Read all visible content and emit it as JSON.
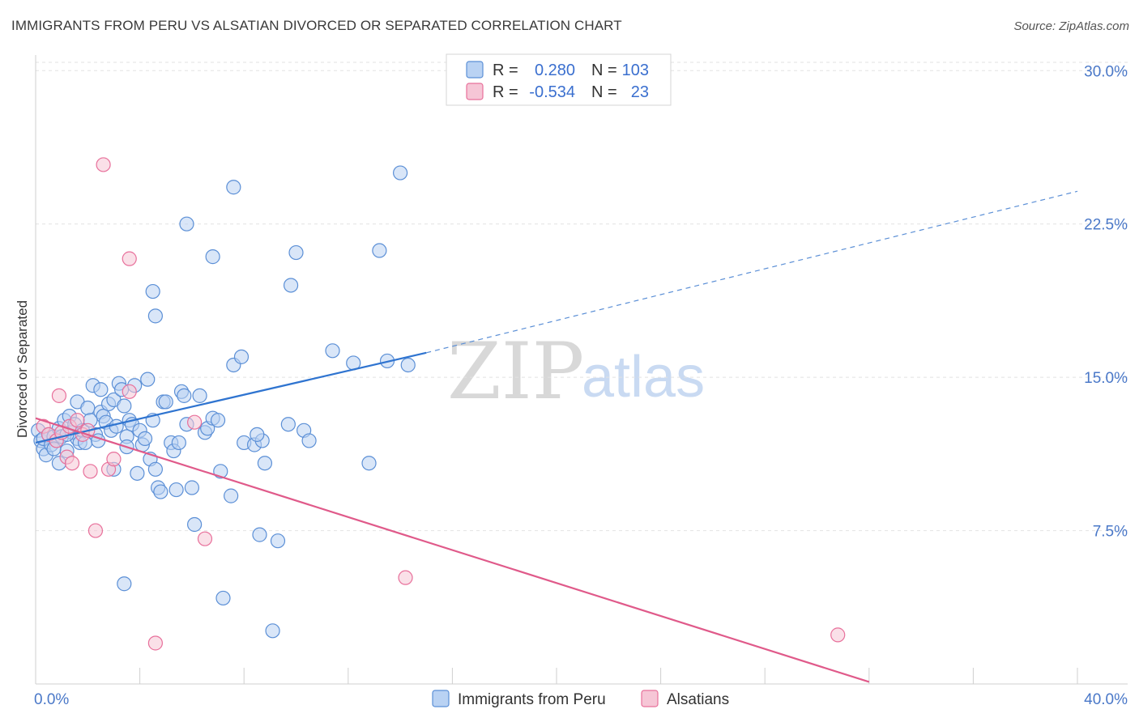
{
  "title": "IMMIGRANTS FROM PERU VS ALSATIAN DIVORCED OR SEPARATED CORRELATION CHART",
  "source": "Source: ZipAtlas.com",
  "watermark": {
    "zip": "ZIP",
    "atlas": "atlas"
  },
  "colors": {
    "peru": "#5b8fd6",
    "peru_fill": "#b9d2f3",
    "alsatian": "#e8709b",
    "alsatian_fill": "#f6c6d6",
    "axis_label": "#4a78c8",
    "grid": "#e2e2e2"
  },
  "legend": {
    "rows": [
      {
        "r_label": "R =",
        "r_value": "0.280",
        "n_label": "N =",
        "n_value": "103"
      },
      {
        "r_label": "R =",
        "r_value": "-0.534",
        "n_label": "N =",
        "n_value": "23"
      }
    ]
  },
  "bottom_legend": [
    "Immigrants from Peru",
    "Alsatians"
  ],
  "chart_data": {
    "type": "scatter",
    "title": "IMMIGRANTS FROM PERU VS ALSATIAN DIVORCED OR SEPARATED CORRELATION CHART",
    "xlabel": "",
    "ylabel": "Divorced or Separated",
    "xlim": [
      0,
      40
    ],
    "ylim": [
      0,
      31
    ],
    "x_tick_labels": [
      "0.0%",
      "40.0%"
    ],
    "y_ticks": [
      7.5,
      15.0,
      22.5,
      30.0
    ],
    "y_tick_labels": [
      "7.5%",
      "15.0%",
      "22.5%",
      "30.0%"
    ],
    "grid": true,
    "legend_position": "top-center",
    "series": [
      {
        "name": "Immigrants from Peru",
        "r": 0.28,
        "n": 103,
        "trend": {
          "x0": 0,
          "y0": 11.8,
          "x1": 15,
          "y1": 16.2,
          "dashed_to_x": 40,
          "dashed_to_y": 24.1
        },
        "points": [
          [
            0.1,
            12.4
          ],
          [
            0.2,
            11.9
          ],
          [
            0.3,
            11.5
          ],
          [
            0.3,
            12.0
          ],
          [
            0.4,
            11.2
          ],
          [
            0.5,
            12.2
          ],
          [
            0.6,
            11.7
          ],
          [
            0.7,
            12.1
          ],
          [
            0.8,
            11.9
          ],
          [
            0.9,
            10.8
          ],
          [
            0.9,
            12.5
          ],
          [
            1.0,
            12.1
          ],
          [
            1.1,
            12.9
          ],
          [
            1.2,
            11.4
          ],
          [
            1.3,
            13.1
          ],
          [
            1.4,
            12.3
          ],
          [
            1.5,
            12.7
          ],
          [
            1.6,
            12.0
          ],
          [
            1.7,
            11.8
          ],
          [
            1.8,
            12.4
          ],
          [
            1.6,
            13.8
          ],
          [
            1.9,
            11.8
          ],
          [
            2.0,
            13.5
          ],
          [
            2.1,
            12.9
          ],
          [
            2.2,
            14.6
          ],
          [
            2.3,
            12.2
          ],
          [
            2.4,
            11.9
          ],
          [
            2.5,
            13.3
          ],
          [
            2.6,
            13.1
          ],
          [
            2.7,
            12.8
          ],
          [
            2.8,
            13.7
          ],
          [
            2.9,
            12.4
          ],
          [
            2.5,
            14.4
          ],
          [
            3.0,
            10.5
          ],
          [
            3.0,
            13.9
          ],
          [
            3.1,
            12.6
          ],
          [
            3.2,
            14.7
          ],
          [
            3.3,
            14.4
          ],
          [
            3.4,
            13.6
          ],
          [
            3.5,
            12.1
          ],
          [
            3.5,
            11.6
          ],
          [
            3.6,
            12.9
          ],
          [
            3.7,
            12.7
          ],
          [
            3.8,
            14.6
          ],
          [
            3.9,
            10.3
          ],
          [
            4.0,
            12.4
          ],
          [
            4.1,
            11.7
          ],
          [
            4.2,
            12.0
          ],
          [
            4.3,
            14.9
          ],
          [
            4.4,
            11.0
          ],
          [
            4.5,
            12.9
          ],
          [
            4.6,
            10.5
          ],
          [
            4.7,
            9.6
          ],
          [
            4.8,
            9.4
          ],
          [
            4.9,
            13.8
          ],
          [
            5.0,
            13.8
          ],
          [
            5.2,
            11.8
          ],
          [
            5.3,
            11.4
          ],
          [
            5.4,
            9.5
          ],
          [
            5.5,
            11.8
          ],
          [
            5.6,
            14.3
          ],
          [
            5.8,
            12.7
          ],
          [
            5.7,
            14.1
          ],
          [
            6.0,
            9.6
          ],
          [
            6.1,
            7.8
          ],
          [
            6.3,
            14.1
          ],
          [
            6.5,
            12.3
          ],
          [
            6.6,
            12.5
          ],
          [
            6.8,
            13.0
          ],
          [
            7.0,
            12.9
          ],
          [
            7.1,
            10.4
          ],
          [
            7.5,
            9.2
          ],
          [
            7.6,
            15.6
          ],
          [
            7.9,
            16.0
          ],
          [
            8.0,
            11.8
          ],
          [
            8.4,
            11.7
          ],
          [
            8.6,
            7.3
          ],
          [
            8.7,
            11.9
          ],
          [
            8.8,
            10.8
          ],
          [
            9.1,
            2.6
          ],
          [
            9.3,
            7.0
          ],
          [
            9.7,
            12.7
          ],
          [
            10.3,
            12.4
          ],
          [
            10.5,
            11.9
          ],
          [
            11.4,
            16.3
          ],
          [
            12.2,
            15.7
          ],
          [
            12.8,
            10.8
          ],
          [
            13.2,
            21.2
          ],
          [
            13.5,
            15.8
          ],
          [
            14.0,
            25.0
          ],
          [
            14.3,
            15.6
          ],
          [
            4.6,
            18.0
          ],
          [
            4.5,
            19.2
          ],
          [
            5.8,
            22.5
          ],
          [
            6.8,
            20.9
          ],
          [
            7.6,
            24.3
          ],
          [
            9.8,
            19.5
          ],
          [
            10.0,
            21.1
          ],
          [
            0.7,
            11.5
          ],
          [
            1.2,
            12.2
          ],
          [
            3.4,
            4.9
          ],
          [
            7.2,
            4.2
          ],
          [
            8.5,
            12.2
          ]
        ]
      },
      {
        "name": "Alsatians",
        "r": -0.534,
        "n": 23,
        "trend": {
          "x0": 0,
          "y0": 13.0,
          "x1": 32,
          "y1": 0.1
        },
        "points": [
          [
            0.3,
            12.6
          ],
          [
            0.5,
            12.2
          ],
          [
            0.8,
            11.9
          ],
          [
            0.9,
            14.1
          ],
          [
            1.0,
            12.3
          ],
          [
            1.2,
            11.1
          ],
          [
            1.3,
            12.6
          ],
          [
            1.4,
            10.8
          ],
          [
            1.6,
            12.9
          ],
          [
            1.8,
            12.2
          ],
          [
            2.0,
            12.4
          ],
          [
            2.1,
            10.4
          ],
          [
            2.3,
            7.5
          ],
          [
            2.6,
            25.4
          ],
          [
            2.8,
            10.5
          ],
          [
            3.0,
            11.0
          ],
          [
            3.6,
            14.3
          ],
          [
            3.6,
            20.8
          ],
          [
            4.6,
            2.0
          ],
          [
            6.1,
            12.8
          ],
          [
            6.5,
            7.1
          ],
          [
            14.2,
            5.2
          ],
          [
            30.8,
            2.4
          ]
        ]
      }
    ]
  }
}
